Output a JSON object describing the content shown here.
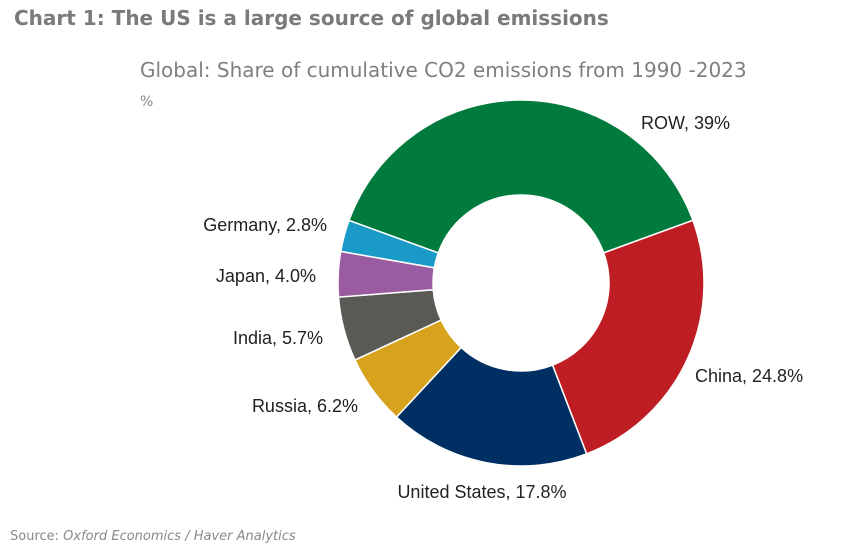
{
  "heading": "Chart 1: The US is a large source of global emissions",
  "source": {
    "label": "Source: ",
    "text": "Oxford Economics / Haver Analytics"
  },
  "chart_data": {
    "type": "pie",
    "title": "Global: Share of cumulative CO2 emissions from 1990 -2023",
    "unit": "%",
    "donut": true,
    "slices": [
      {
        "label": "ROW, 39%",
        "name": "ROW",
        "value": 39,
        "color": "#007a3d"
      },
      {
        "label": "China, 24.8%",
        "name": "China",
        "value": 24.8,
        "color": "#be1e23"
      },
      {
        "label": "United States, 17.8%",
        "name": "United States",
        "value": 17.8,
        "color": "#002f63"
      },
      {
        "label": "Russia, 6.2%",
        "name": "Russia",
        "value": 6.2,
        "color": "#d8a31c"
      },
      {
        "label": "India, 5.7%",
        "name": "India",
        "value": 5.7,
        "color": "#5a5a55"
      },
      {
        "label": "Japan, 4.0%",
        "name": "Japan",
        "value": 4.0,
        "color": "#9b5ba0"
      },
      {
        "label": "Germany, 2.8%",
        "name": "Germany",
        "value": 2.8,
        "color": "#1a9bc7"
      }
    ]
  }
}
